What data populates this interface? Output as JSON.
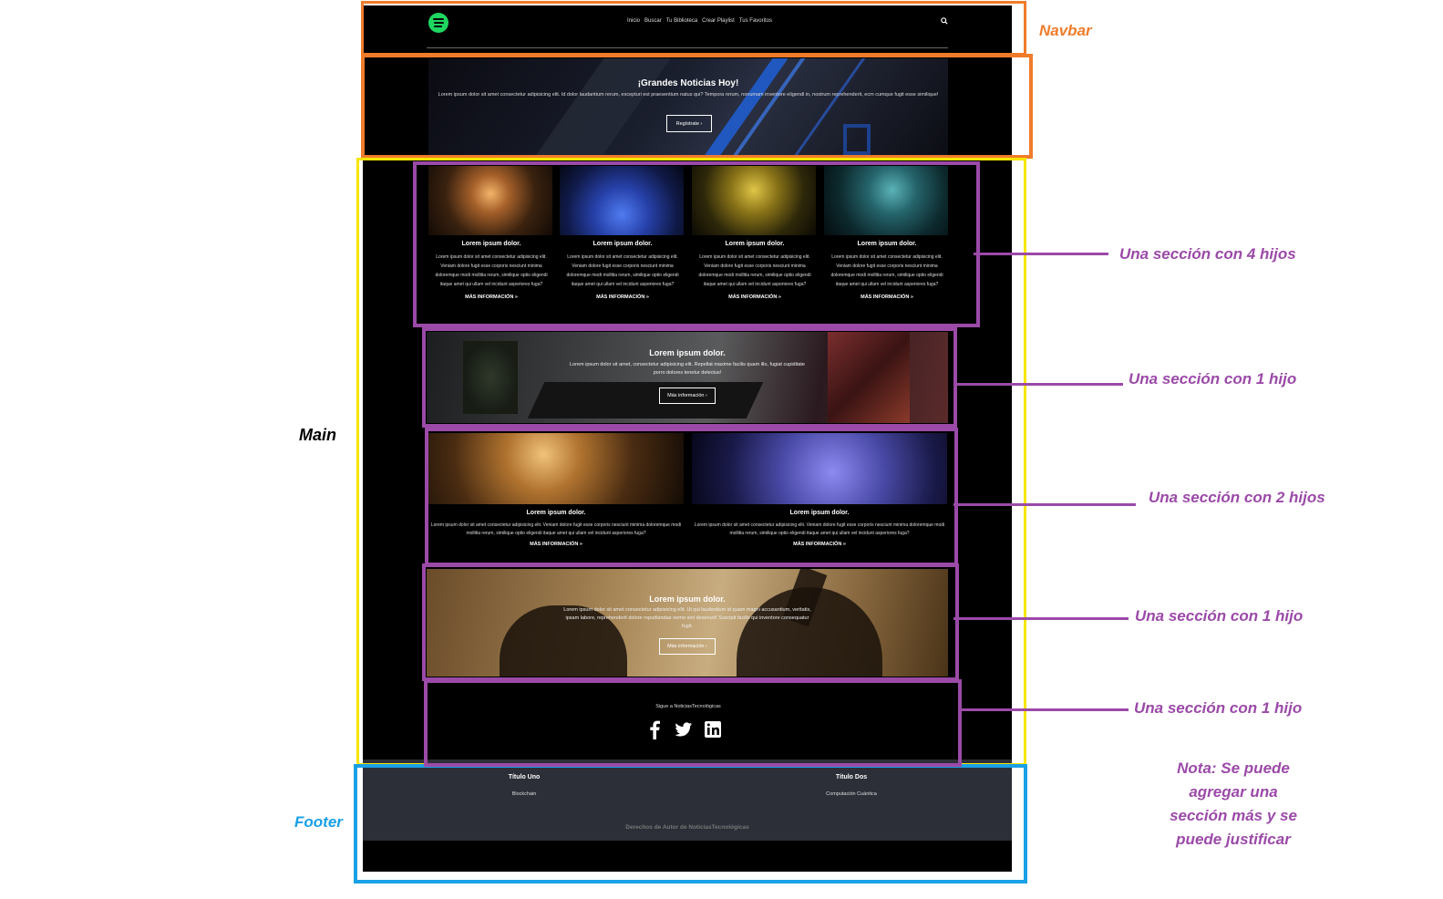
{
  "colors": {
    "navbar": "#f07c2a",
    "main": "#f7e600",
    "section": "#9b4aa8",
    "footer": "#1aa0e6",
    "main_label": "#000000",
    "spotify": "#1ed760",
    "footer_bg": "#2c2f38"
  },
  "navbar": {
    "logo_icon": "spotify-icon",
    "links": [
      "Inicio",
      "Buscar",
      "Tu Biblioteca",
      "Crear Playlist",
      "Tus Favoritos"
    ],
    "search_icon": "search-icon"
  },
  "hero": {
    "title": "¡Grandes Noticias Hoy!",
    "text": "Lorem ipsum dolor sit amet consectetur adipisicing elit. Id dolor laudantium rerum, excepturi est praesentium natus qui? Tempora rerum, nonumam inventore eligendi in, nostrum reprehenderit, ecm cumque fugit esse similique!",
    "button": "Regístrate ›"
  },
  "section4": {
    "cards": [
      {
        "title": "Lorem ipsum dolor.",
        "text": "Lorem ipsum dolor sit amet consectetur adipisicing elit. Veniam dolore fugit esse corporis nesciunt minima doloremque modi mollitia rerum, similique optio eligendi itaque amet qui ullam vel incidunt asperiores fuga?",
        "more": "MÁS INFORMACIÓN »"
      },
      {
        "title": "Lorem ipsum dolor.",
        "text": "Lorem ipsum dolor sit amet consectetur adipisicing elit. Veniam dolore fugit esse corporis nesciunt minima doloremque modi mollitia rerum, similique optio eligendi itaque amet qui ullam vel incidunt asperiores fuga?",
        "more": "MÁS INFORMACIÓN »"
      },
      {
        "title": "Lorem ipsum dolor.",
        "text": "Lorem ipsum dolor sit amet consectetur adipisicing elit. Veniam dolore fugit esse corporis nesciunt minima doloremque modi mollitia rerum, similique optio eligendi itaque amet qui ullam vel incidunt asperiores fuga?",
        "more": "MÁS INFORMACIÓN »"
      },
      {
        "title": "Lorem ipsum dolor.",
        "text": "Lorem ipsum dolor sit amet consectetur adipisicing elit. Veniam dolore fugit esse corporis nesciunt minima doloremque modi mollitia rerum, similique optio eligendi itaque amet qui ullam vel incidunt asperiores fuga?",
        "more": "MÁS INFORMACIÓN »"
      }
    ]
  },
  "banner1": {
    "title": "Lorem ipsum dolor.",
    "text": "Lorem ipsum dolor sit amet, consectetur adipisicing elit. Repellat maxime facilis quam illo, fugiat cupiditate porro dolores tenetur delectus!",
    "button": "Más información ›"
  },
  "section2": {
    "cards": [
      {
        "title": "Lorem ipsum dolor.",
        "text": "Lorem ipsum dolor sit amet consectetur adipisicing elit. Veniam dolore fugit esse corporis nesciunt minima doloremque modi mollitia rerum, similique optio eligendi itaque amet qui ullam vel incidunt asperiores fuga?",
        "more": "MÁS INFORMACIÓN »"
      },
      {
        "title": "Lorem ipsum dolor.",
        "text": "Lorem ipsum dolor sit amet consectetur adipisicing elit. Veniam dolore fugit esse corporis nesciunt minima doloremque modi mollitia rerum, similique optio eligendi itaque amet qui ullam vel incidunt asperiores fuga?",
        "more": "MÁS INFORMACIÓN »"
      }
    ]
  },
  "banner2": {
    "title": "Lorem ipsum dolor.",
    "text": "Lorem ipsum dolor sit amet consectetur adipisicing elit. Ut qui laudantium id quam magni accusantium, veritatis, ipsam labore, reprehenderit dolore repudiandae nemo sint deserunt! Suscipit facilis qui inventore consequatur fugit.",
    "button": "Más información ›"
  },
  "social": {
    "text": "Sigue a NoticiasTecnológicas",
    "icons": [
      "facebook-icon",
      "twitter-icon",
      "linkedin-icon"
    ]
  },
  "footer": {
    "col1_title": "Título Uno",
    "col1_item": "Blockchain",
    "col2_title": "Título Dos",
    "col2_item": "Computación Cuántica",
    "copyright": "Derechos de Autor de NoticiasTecnológicas"
  },
  "annotations": {
    "navbar": "Navbar",
    "main": "Main",
    "footer": "Footer",
    "section_4": "Una sección con 4 hijos",
    "section_1a": "Una sección con 1 hijo",
    "section_2": "Una sección con 2 hijos",
    "section_1b": "Una sección con 1 hijo",
    "section_1c": "Una sección con 1 hijo",
    "note": [
      "Nota: Se puede",
      "agregar una",
      "sección más y se",
      "puede justificar"
    ]
  }
}
